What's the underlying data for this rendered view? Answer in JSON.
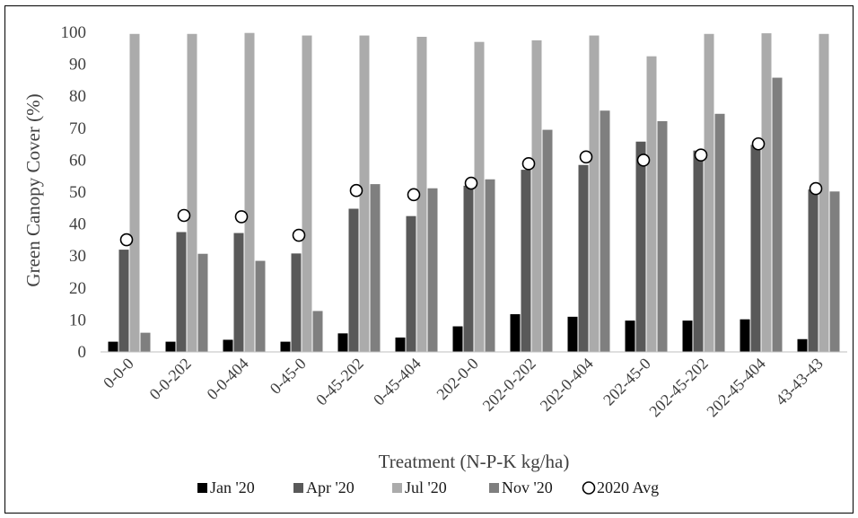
{
  "chart_data": {
    "type": "bar",
    "title": "",
    "xlabel": "Treatment (N-P-K kg/ha)",
    "ylabel": "Green Canopy Cover (%)",
    "ylim": [
      0,
      100
    ],
    "yticks": [
      0,
      10,
      20,
      30,
      40,
      50,
      60,
      70,
      80,
      90,
      100
    ],
    "grid": false,
    "legend_position": "bottom",
    "categories": [
      "0-0-0",
      "0-0-202",
      "0-0-404",
      "0-45-0",
      "0-45-202",
      "0-45-404",
      "202-0-0",
      "202-0-202",
      "202-0-404",
      "202-45-0",
      "202-45-202",
      "202-45-404",
      "43-43-43"
    ],
    "series": [
      {
        "name": "Jan '20",
        "kind": "bar",
        "color": "#000000",
        "values": [
          3.2,
          3.2,
          3.8,
          3.2,
          5.8,
          4.5,
          8.0,
          11.8,
          11.0,
          9.8,
          9.8,
          10.2,
          4.0
        ]
      },
      {
        "name": "Apr '20",
        "kind": "bar",
        "color": "#595959",
        "values": [
          32.0,
          37.5,
          37.2,
          30.8,
          44.8,
          42.5,
          52.0,
          57.0,
          58.5,
          65.8,
          63.0,
          64.8,
          50.8
        ]
      },
      {
        "name": "Jul '20",
        "kind": "bar",
        "color": "#ababab",
        "values": [
          99.5,
          99.5,
          99.8,
          99.0,
          99.0,
          98.6,
          97.0,
          97.5,
          99.0,
          92.5,
          99.5,
          99.7,
          99.5
        ]
      },
      {
        "name": "Nov '20",
        "kind": "bar",
        "color": "#7f7f7f",
        "values": [
          6.0,
          30.7,
          28.5,
          12.8,
          52.5,
          51.2,
          54.0,
          69.5,
          75.5,
          72.2,
          74.5,
          85.8,
          50.2
        ]
      },
      {
        "name": "2020 Avg",
        "kind": "marker",
        "color": "#ffffff",
        "values": [
          35.1,
          42.7,
          42.3,
          36.5,
          50.5,
          49.2,
          52.8,
          58.9,
          61.0,
          60.0,
          61.6,
          65.1,
          51.1
        ]
      }
    ]
  }
}
